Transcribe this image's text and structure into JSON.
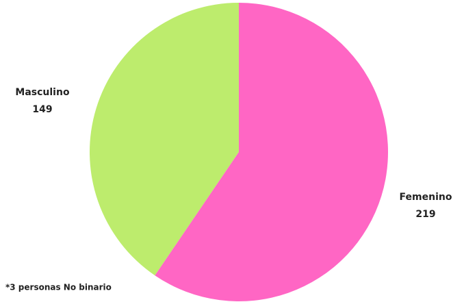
{
  "chart_data": {
    "type": "pie",
    "categories": [
      "Femenino",
      "Masculino"
    ],
    "values": [
      219,
      149
    ],
    "colors": [
      "#ff66c4",
      "#bdec6d"
    ],
    "note": "*3  personas No binario"
  }
}
